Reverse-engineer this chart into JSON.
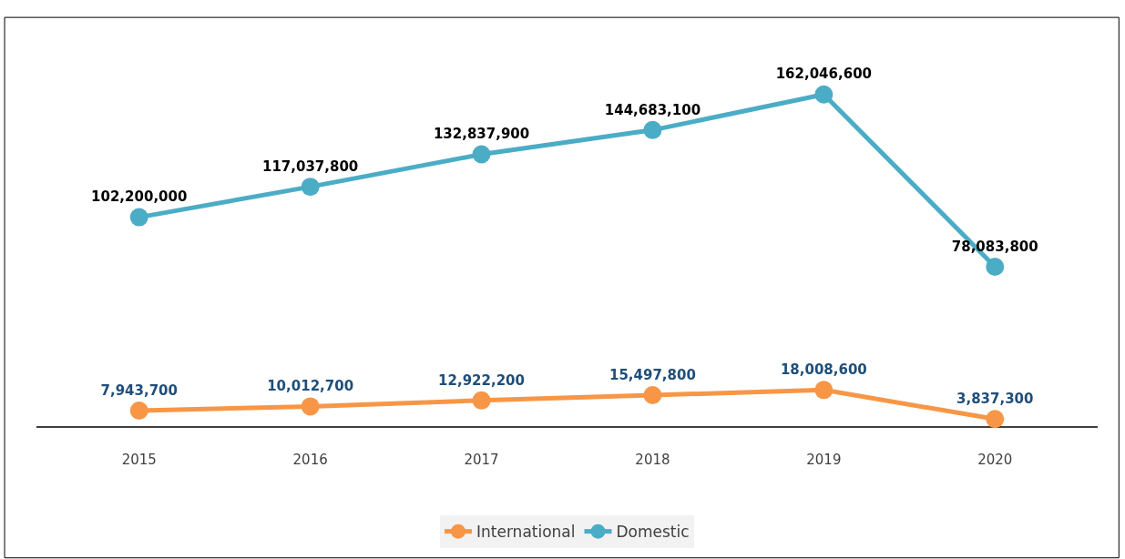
{
  "chart_data": {
    "type": "line",
    "categories": [
      "2015",
      "2016",
      "2017",
      "2018",
      "2019",
      "2020"
    ],
    "series": [
      {
        "name": "International",
        "color": "#f79646",
        "values": [
          7943700,
          10012700,
          12922200,
          15497800,
          18008600,
          3837300
        ],
        "value_labels": [
          "7,943,700",
          "10,012,700",
          "12,922,200",
          "15,497,800",
          "18,008,600",
          "3,837,300"
        ]
      },
      {
        "name": "Domestic",
        "color": "#4bacc6",
        "values": [
          102200000,
          117037800,
          132837900,
          144683100,
          162046600,
          78083800
        ],
        "value_labels": [
          "102,200,000",
          "117,037,800",
          "132,837,900",
          "144,683,100",
          "162,046,600",
          "78,083,800"
        ]
      }
    ],
    "marker": "circle",
    "line_style": "solid",
    "legend": "bottom"
  }
}
